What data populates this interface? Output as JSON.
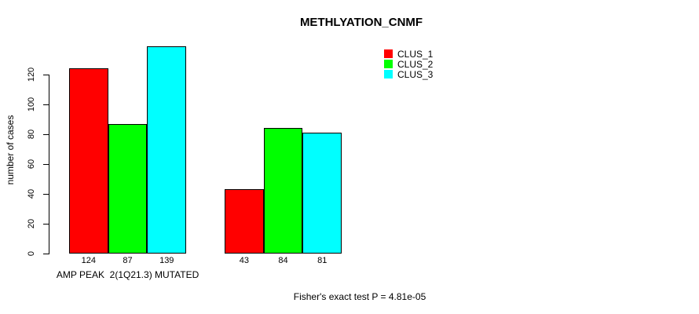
{
  "chart_data": {
    "type": "bar",
    "title": "METHLYATION_CNMF",
    "ylabel": "number of cases",
    "categories": [
      "AMP PEAK  2(1Q21.3) MUTATED",
      ""
    ],
    "series": [
      {
        "name": "CLUS_1",
        "color": "#ff0000",
        "values": [
          124,
          43
        ]
      },
      {
        "name": "CLUS_2",
        "color": "#00ff00",
        "values": [
          87,
          84
        ]
      },
      {
        "name": "CLUS_3",
        "color": "#00ffff",
        "values": [
          139,
          81
        ]
      }
    ],
    "bar_labels": [
      124,
      87,
      139,
      43,
      84,
      81
    ],
    "yticks": [
      0,
      20,
      40,
      60,
      80,
      100,
      120
    ],
    "ylim": [
      0,
      140
    ],
    "grid": false,
    "legend_position": "top-right",
    "annotation": "Fisher's exact test P = 4.81e-05",
    "bar_border_color": "#000000",
    "axis_color": "#000000",
    "background_color": "#ffffff"
  }
}
